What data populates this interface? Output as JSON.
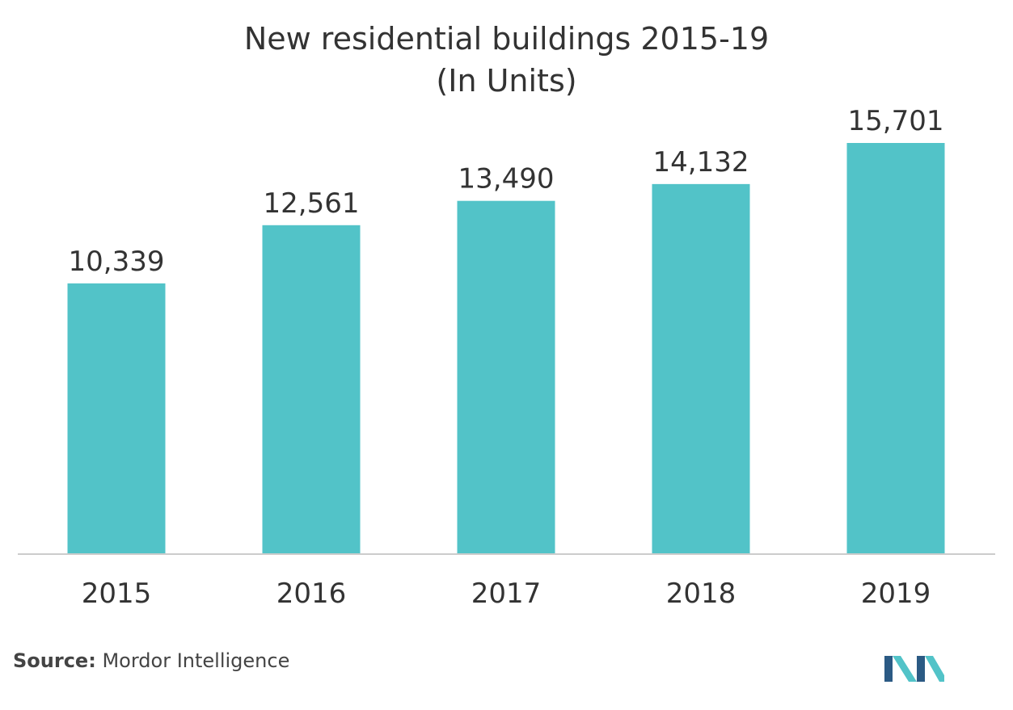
{
  "chart_data": {
    "type": "bar",
    "title": "New residential buildings 2015-19",
    "subtitle": "(In Units)",
    "categories": [
      "2015",
      "2016",
      "2017",
      "2018",
      "2019"
    ],
    "values": [
      10339,
      12561,
      13490,
      14132,
      15701
    ],
    "value_labels": [
      "10,339",
      "12,561",
      "13,490",
      "14,132",
      "15,701"
    ],
    "ylim": [
      0,
      15701
    ],
    "grid": false,
    "bar_color": "#52c3c8",
    "baseline_color": "#cccccc"
  },
  "source": {
    "label": "Source:",
    "text": "Mordor Intelligence"
  },
  "logo": {
    "icon": "mordor-intelligence-logo-icon",
    "colors": [
      "#2b5a84",
      "#52c3c8"
    ]
  }
}
